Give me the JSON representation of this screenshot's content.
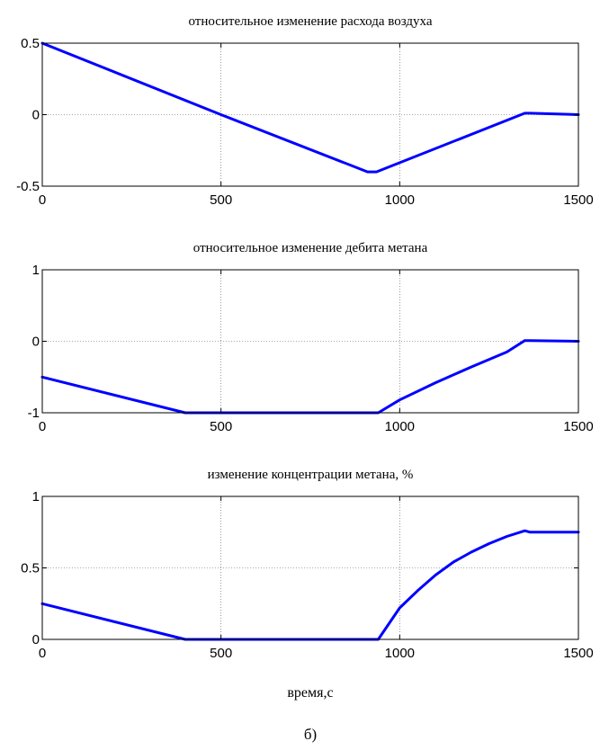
{
  "xlabel": "время,с",
  "caption": "б)",
  "chart_data": [
    {
      "type": "line",
      "title": "относительное изменение расхода воздуха",
      "xlim": [
        0,
        1500
      ],
      "ylim": [
        -0.5,
        0.5
      ],
      "xticks": [
        0,
        500,
        1000,
        1500
      ],
      "yticks": [
        -0.5,
        0,
        0.5
      ],
      "xtick_labels": [
        "0",
        "500",
        "1000",
        "1500"
      ],
      "ytick_labels": [
        "-0.5",
        "0",
        "0.5"
      ],
      "grid": true,
      "line_color": "#0000ff",
      "series": [
        {
          "x": [
            0,
            500,
            910,
            935,
            1350,
            1365,
            1500
          ],
          "y": [
            0.5,
            0.0,
            -0.4,
            -0.4,
            0.01,
            0.01,
            0.0
          ]
        }
      ]
    },
    {
      "type": "line",
      "title": "относительное изменение дебита метана",
      "xlim": [
        0,
        1500
      ],
      "ylim": [
        -1,
        1
      ],
      "xticks": [
        0,
        500,
        1000,
        1500
      ],
      "yticks": [
        -1,
        0,
        1
      ],
      "xtick_labels": [
        "0",
        "500",
        "1000",
        "1500"
      ],
      "ytick_labels": [
        "-1",
        "0",
        "1"
      ],
      "grid": true,
      "line_color": "#0000ff",
      "series": [
        {
          "x": [
            0,
            400,
            940,
            1000,
            1100,
            1200,
            1300,
            1350,
            1365,
            1500
          ],
          "y": [
            -0.5,
            -1.0,
            -1.0,
            -0.82,
            -0.58,
            -0.36,
            -0.15,
            0.01,
            0.01,
            0.0
          ]
        }
      ]
    },
    {
      "type": "line",
      "title": "изменение концентрации метана, %",
      "xlim": [
        0,
        1500
      ],
      "ylim": [
        0,
        1
      ],
      "xticks": [
        0,
        500,
        1000,
        1500
      ],
      "yticks": [
        0,
        0.5,
        1
      ],
      "xtick_labels": [
        "0",
        "500",
        "1000",
        "1500"
      ],
      "ytick_labels": [
        "0",
        "0.5",
        "1"
      ],
      "grid": true,
      "line_color": "#0000ff",
      "series": [
        {
          "x": [
            0,
            400,
            940,
            970,
            1000,
            1050,
            1100,
            1150,
            1200,
            1250,
            1300,
            1350,
            1365,
            1500
          ],
          "y": [
            0.25,
            0.0,
            0.0,
            0.11,
            0.22,
            0.34,
            0.45,
            0.54,
            0.61,
            0.67,
            0.72,
            0.76,
            0.75,
            0.75
          ]
        }
      ]
    }
  ]
}
